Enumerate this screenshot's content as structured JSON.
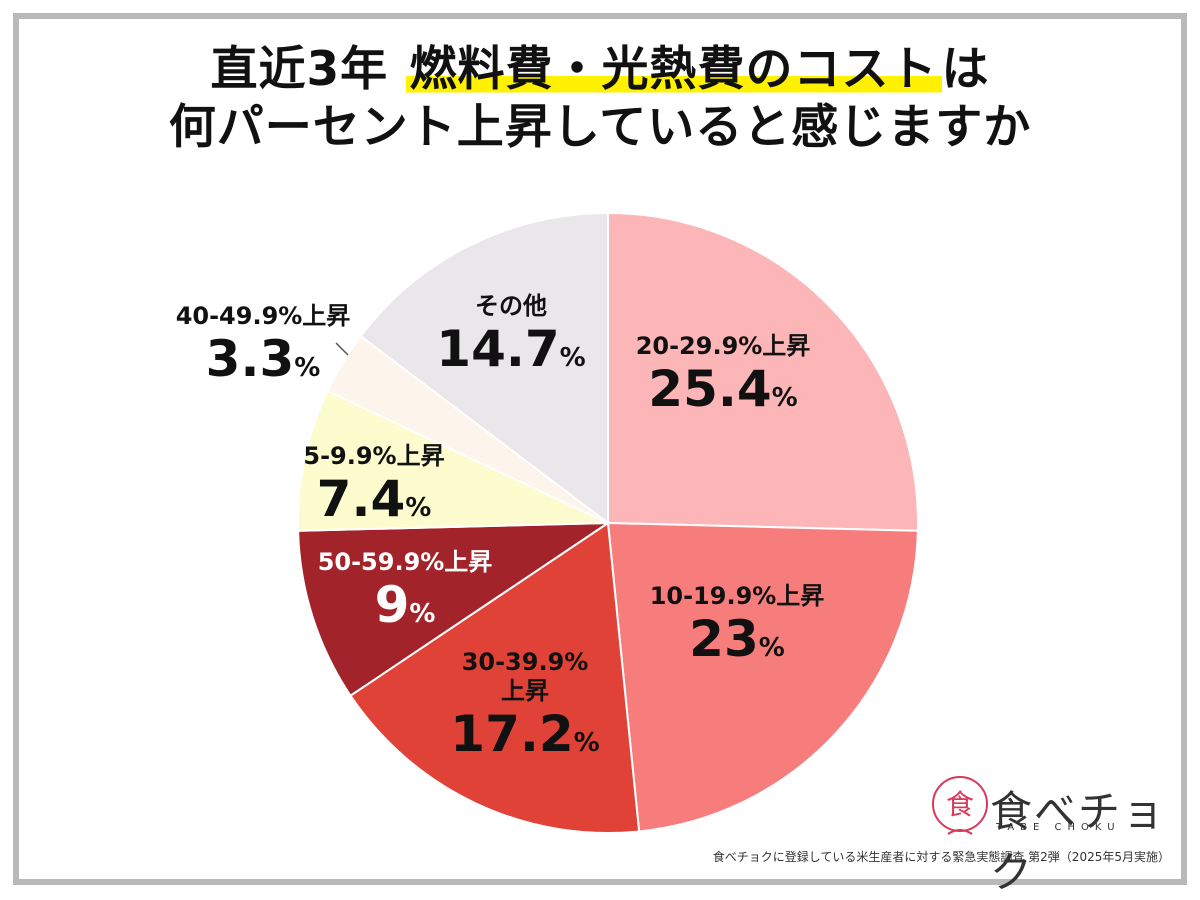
{
  "title": {
    "line1_pre": "直近3年",
    "line1_highlight": "燃料費・光熱費のコスト",
    "line1_post": "は",
    "line2": "何パーセント上昇していると感じますか"
  },
  "chart_data": {
    "type": "pie",
    "start_angle_deg": 0,
    "direction": "clockwise",
    "slices": [
      {
        "label": "20-29.9%上昇",
        "value": 25.4,
        "display": "25.4",
        "color": "#fcb6b8"
      },
      {
        "label": "10-19.9%上昇",
        "value": 23,
        "display": "23",
        "color": "#f77d7d"
      },
      {
        "label": "30-39.9%上昇",
        "value": 17.2,
        "display": "17.2",
        "color": "#e14238"
      },
      {
        "label": "50-59.9%上昇",
        "value": 9,
        "display": "9",
        "color": "#a2242a"
      },
      {
        "label": "5-9.9%上昇",
        "value": 7.4,
        "display": "7.4",
        "color": "#fdfcce"
      },
      {
        "label": "40-49.9%上昇",
        "value": 3.3,
        "display": "3.3",
        "color": "#fdf4ec"
      },
      {
        "label": "その他",
        "value": 14.7,
        "display": "14.7",
        "color": "#e9e7e9"
      }
    ],
    "unit": "%"
  },
  "labels": {
    "s0": {
      "name": "20-29.9%上昇",
      "value": "25.4"
    },
    "s1": {
      "name": "10-19.9%上昇",
      "value": "23"
    },
    "s2": {
      "name1": "30-39.9%",
      "name2": "上昇",
      "value": "17.2"
    },
    "s3": {
      "name": "50-59.9%上昇",
      "value": "9"
    },
    "s4": {
      "name": "5-9.9%上昇",
      "value": "7.4"
    },
    "s5": {
      "name": "40-49.9%上昇",
      "value": "3.3"
    },
    "s6": {
      "name": "その他",
      "value": "14.7"
    },
    "pct": "%"
  },
  "logo": {
    "text": "食べチョク",
    "sub": "TABE CHOKU",
    "accent": "#d9395a"
  },
  "footnote": "食べチョクに登録している米生産者に対する緊急実態調査 第2弾（2025年5月実施）"
}
